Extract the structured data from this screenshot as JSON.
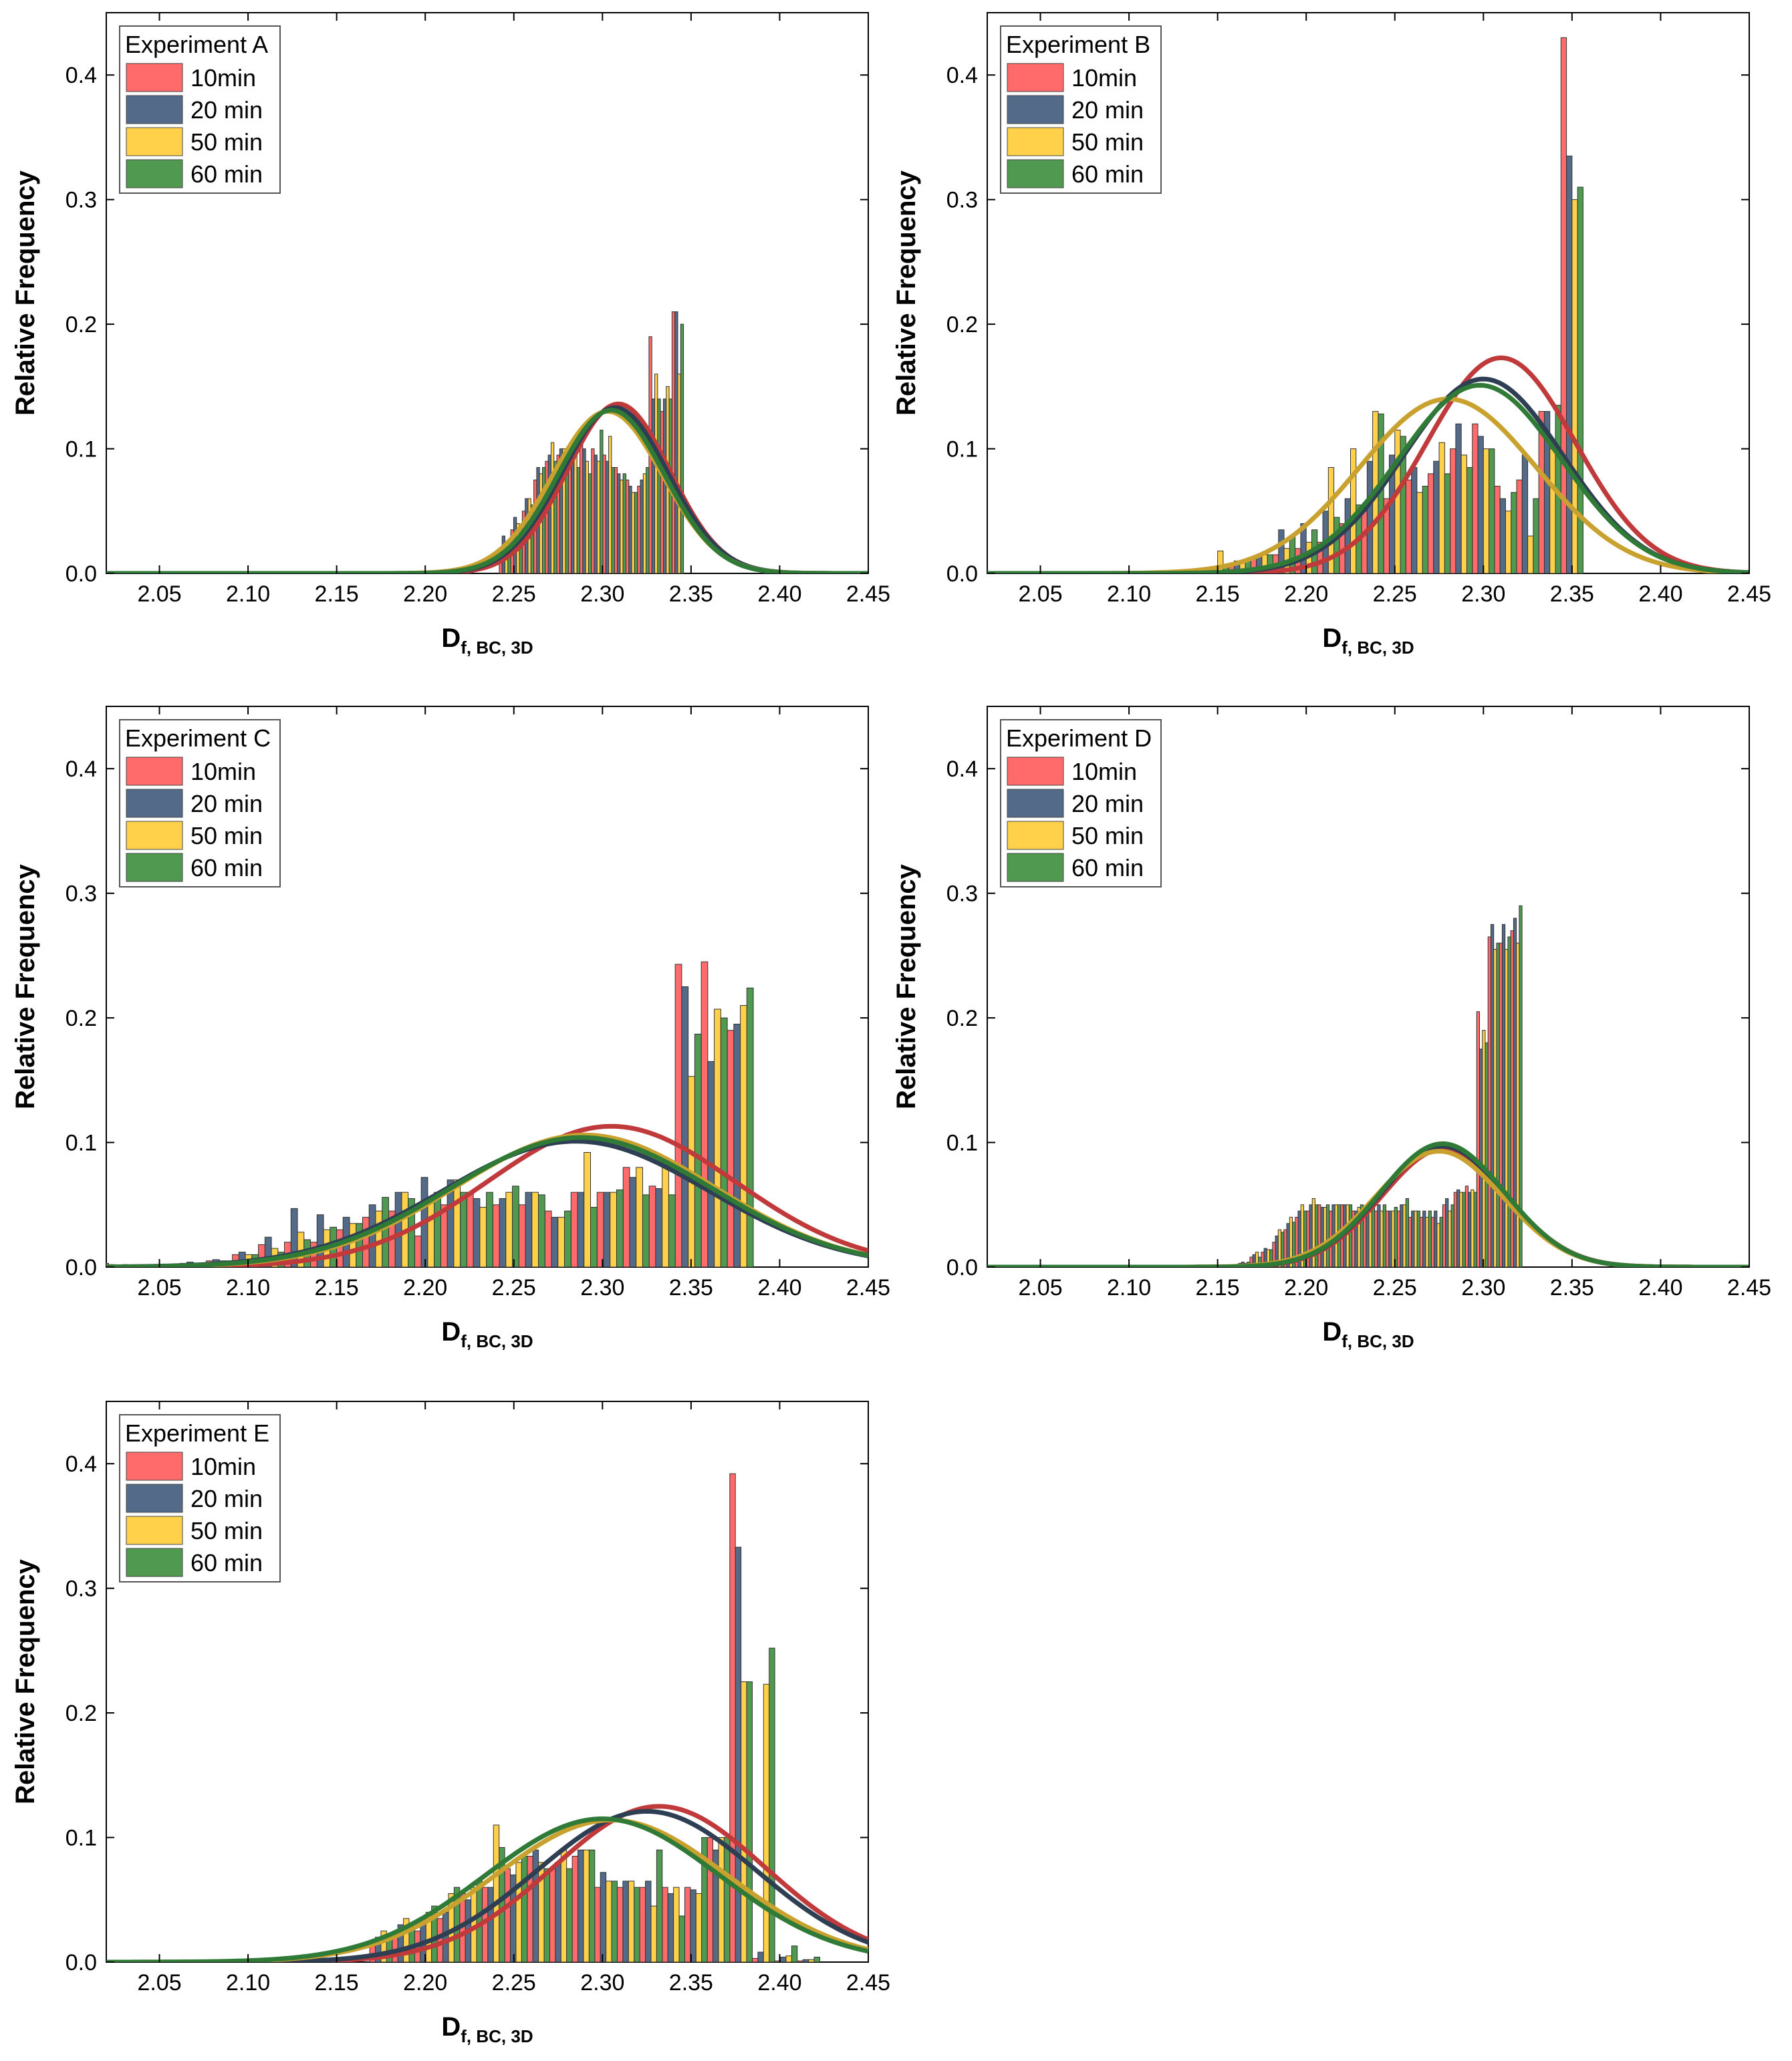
{
  "figure": {
    "x_axis_label_main": "D",
    "x_axis_label_sub": "f, BC, 3D",
    "y_axis_label": "Relative Frequency"
  },
  "series_styles": [
    {
      "name": "10min",
      "bar_color": "#ff6b6b",
      "line_color": "#c0393b"
    },
    {
      "name": "20 min",
      "bar_color": "#536b88",
      "line_color": "#2e3f54"
    },
    {
      "name": "50 min",
      "bar_color": "#ffd04a",
      "line_color": "#c9a12e"
    },
    {
      "name": "60 min",
      "bar_color": "#4f9a50",
      "line_color": "#2f7a36"
    }
  ],
  "chart_data": [
    {
      "type": "bar",
      "title": "Experiment A",
      "legend": [
        "10min",
        "20 min",
        "50 min",
        "60 min"
      ],
      "legend_position": "top-left",
      "xlabel": "D f, BC, 3D",
      "ylabel": "Relative Frequency",
      "xlim": [
        2.02,
        2.45
      ],
      "ylim": [
        0,
        0.45
      ],
      "xticks": [
        "2.05",
        "2.10",
        "2.15",
        "2.20",
        "2.25",
        "2.30",
        "2.35",
        "2.40",
        "2.45"
      ],
      "yticks": [
        "0.0",
        "0.1",
        "0.2",
        "0.3",
        "0.4"
      ],
      "bin_width": 0.0065,
      "categories": [
        2.245,
        2.2515,
        2.258,
        2.2645,
        2.271,
        2.2775,
        2.284,
        2.2905,
        2.297,
        2.3035,
        2.31,
        2.3165,
        2.323,
        2.3295,
        2.336,
        2.3425
      ],
      "series": [
        {
          "name": "10min",
          "values": [
            0.02,
            0.035,
            0.05,
            0.075,
            0.09,
            0.095,
            0.1,
            0.105,
            0.1,
            0.095,
            0.085,
            0.075,
            0.07,
            0.19,
            0.13,
            0.21
          ]
        },
        {
          "name": "20 min",
          "values": [
            0.03,
            0.045,
            0.06,
            0.085,
            0.095,
            0.1,
            0.095,
            0.1,
            0.095,
            0.09,
            0.08,
            0.07,
            0.075,
            0.14,
            0.14,
            0.21
          ]
        },
        {
          "name": "50 min",
          "values": [
            0.025,
            0.04,
            0.06,
            0.08,
            0.105,
            0.1,
            0.105,
            0.09,
            0.09,
            0.11,
            0.075,
            0.065,
            0.08,
            0.16,
            0.15,
            0.16
          ]
        },
        {
          "name": "60 min",
          "values": [
            0.02,
            0.035,
            0.055,
            0.085,
            0.09,
            0.1,
            0.085,
            0.08,
            0.115,
            0.085,
            0.08,
            0.065,
            0.085,
            0.14,
            0.14,
            0.2
          ]
        }
      ],
      "fit_curves": [
        {
          "name": "10min",
          "mean": 2.309,
          "sd": 0.029,
          "peak": 0.136
        },
        {
          "name": "20 min",
          "mean": 2.307,
          "sd": 0.03,
          "peak": 0.133
        },
        {
          "name": "50 min",
          "mean": 2.303,
          "sd": 0.031,
          "peak": 0.13
        },
        {
          "name": "60 min",
          "mean": 2.305,
          "sd": 0.03,
          "peak": 0.131
        }
      ]
    },
    {
      "type": "bar",
      "title": "Experiment B",
      "legend": [
        "10min",
        "20 min",
        "50 min",
        "60 min"
      ],
      "legend_position": "top-left",
      "xlabel": "D f, BC, 3D",
      "ylabel": "Relative Frequency",
      "xlim": [
        2.02,
        2.45
      ],
      "ylim": [
        0,
        0.45
      ],
      "xticks": [
        "2.05",
        "2.10",
        "2.15",
        "2.20",
        "2.25",
        "2.30",
        "2.35",
        "2.40",
        "2.45"
      ],
      "yticks": [
        "0.0",
        "0.1",
        "0.2",
        "0.3",
        "0.4"
      ],
      "bin_width": 0.0125,
      "categories": [
        2.15,
        2.1625,
        2.175,
        2.1875,
        2.2,
        2.2125,
        2.225,
        2.2375,
        2.25,
        2.2625,
        2.275,
        2.2875,
        2.3,
        2.3125,
        2.325,
        2.3375,
        2.35
      ],
      "series": [
        {
          "name": "10min",
          "values": [
            0.005,
            0.008,
            0.012,
            0.015,
            0.02,
            0.025,
            0.04,
            0.05,
            0.06,
            0.075,
            0.08,
            0.1,
            0.12,
            0.07,
            0.075,
            0.13,
            0.43
          ]
        },
        {
          "name": "20 min",
          "values": [
            0.005,
            0.01,
            0.015,
            0.035,
            0.04,
            0.05,
            0.06,
            0.09,
            0.095,
            0.085,
            0.09,
            0.12,
            0.11,
            0.06,
            0.095,
            0.13,
            0.335
          ]
        },
        {
          "name": "50 min",
          "values": [
            0.018,
            0.01,
            0.015,
            0.02,
            0.025,
            0.085,
            0.1,
            0.13,
            0.115,
            0.065,
            0.105,
            0.095,
            0.1,
            0.05,
            0.03,
            0.1,
            0.3
          ]
        },
        {
          "name": "60 min",
          "values": [
            0.005,
            0.01,
            0.015,
            0.03,
            0.035,
            0.045,
            0.055,
            0.128,
            0.11,
            0.07,
            0.08,
            0.085,
            0.1,
            0.065,
            0.06,
            0.135,
            0.31
          ]
        }
      ],
      "fit_curves": [
        {
          "name": "10min",
          "mean": 2.31,
          "sd": 0.042,
          "peak": 0.173
        },
        {
          "name": "20 min",
          "mean": 2.3,
          "sd": 0.045,
          "peak": 0.156
        },
        {
          "name": "50 min",
          "mean": 2.28,
          "sd": 0.05,
          "peak": 0.14
        },
        {
          "name": "60 min",
          "mean": 2.298,
          "sd": 0.046,
          "peak": 0.151
        }
      ]
    },
    {
      "type": "bar",
      "title": "Experiment C",
      "legend": [
        "10min",
        "20 min",
        "50 min",
        "60 min"
      ],
      "legend_position": "top-left",
      "xlabel": "D f, BC, 3D",
      "ylabel": "Relative Frequency",
      "xlim": [
        2.02,
        2.45
      ],
      "ylim": [
        0,
        0.45
      ],
      "xticks": [
        "2.05",
        "2.10",
        "2.15",
        "2.20",
        "2.25",
        "2.30",
        "2.35",
        "2.40",
        "2.45"
      ],
      "yticks": [
        "0.0",
        "0.1",
        "0.2",
        "0.3",
        "0.4"
      ],
      "bin_width": 0.0147,
      "categories": [
        2.025,
        2.0397,
        2.0544,
        2.0691,
        2.0838,
        2.0985,
        2.1132,
        2.1279,
        2.1426,
        2.1573,
        2.172,
        2.1867,
        2.2014,
        2.2161,
        2.2308,
        2.2455,
        2.2602,
        2.2749,
        2.2896,
        2.3043,
        2.319,
        2.3337,
        2.3484,
        2.3631,
        2.3778
      ],
      "series": [
        {
          "name": "10min",
          "values": [
            0.003,
            0.001,
            0.002,
            0.003,
            0.005,
            0.01,
            0.018,
            0.02,
            0.02,
            0.03,
            0.04,
            0.045,
            0.025,
            0.05,
            0.06,
            0.05,
            0.05,
            0.045,
            0.06,
            0.06,
            0.08,
            0.065,
            0.243,
            0.245,
            0.19
          ]
        },
        {
          "name": "20 min",
          "values": [
            0.002,
            0.001,
            0.002,
            0.004,
            0.006,
            0.012,
            0.024,
            0.047,
            0.042,
            0.04,
            0.05,
            0.06,
            0.072,
            0.07,
            0.055,
            0.055,
            0.06,
            0.04,
            0.06,
            0.06,
            0.072,
            0.063,
            0.225,
            0.165,
            0.195
          ]
        },
        {
          "name": "50 min",
          "values": [
            0.001,
            0.001,
            0.002,
            0.003,
            0.005,
            0.01,
            0.015,
            0.028,
            0.03,
            0.035,
            0.045,
            0.06,
            0.055,
            0.07,
            0.048,
            0.06,
            0.06,
            0.04,
            0.092,
            0.06,
            0.08,
            0.085,
            0.153,
            0.207,
            0.21
          ]
        },
        {
          "name": "60 min",
          "values": [
            0.002,
            0.001,
            0.002,
            0.003,
            0.005,
            0.01,
            0.012,
            0.022,
            0.032,
            0.035,
            0.056,
            0.055,
            0.06,
            0.06,
            0.06,
            0.065,
            0.058,
            0.045,
            0.048,
            0.062,
            0.058,
            0.058,
            0.187,
            0.2,
            0.224
          ]
        }
      ],
      "fit_curves": [
        {
          "name": "10min",
          "mean": 2.305,
          "sd": 0.07,
          "peak": 0.113
        },
        {
          "name": "20 min",
          "mean": 2.285,
          "sd": 0.075,
          "peak": 0.101
        },
        {
          "name": "50 min",
          "mean": 2.29,
          "sd": 0.073,
          "peak": 0.106
        },
        {
          "name": "60 min",
          "mean": 2.288,
          "sd": 0.074,
          "peak": 0.104
        }
      ]
    },
    {
      "type": "bar",
      "title": "Experiment D",
      "legend": [
        "10min",
        "20 min",
        "50 min",
        "60 min"
      ],
      "legend_position": "top-left",
      "xlabel": "D f, BC, 3D",
      "ylabel": "Relative Frequency",
      "xlim": [
        2.02,
        2.45
      ],
      "ylim": [
        0,
        0.45
      ],
      "xticks": [
        "2.05",
        "2.10",
        "2.15",
        "2.20",
        "2.25",
        "2.30",
        "2.35",
        "2.40",
        "2.45"
      ],
      "yticks": [
        "0.0",
        "0.1",
        "0.2",
        "0.3",
        "0.4"
      ],
      "bin_width": 0.0064,
      "categories": [
        2.165,
        2.1714,
        2.1778,
        2.1842,
        2.1906,
        2.197,
        2.2034,
        2.2098,
        2.2162,
        2.2226,
        2.229,
        2.2354,
        2.2418,
        2.2482,
        2.2546,
        2.261,
        2.2674,
        2.2738,
        2.2802,
        2.2866,
        2.293,
        2.2994,
        2.3058,
        2.3122,
        2.3186
      ],
      "series": [
        {
          "name": "10min",
          "values": [
            0.003,
            0.008,
            0.012,
            0.02,
            0.03,
            0.04,
            0.045,
            0.05,
            0.045,
            0.05,
            0.045,
            0.04,
            0.045,
            0.045,
            0.045,
            0.04,
            0.04,
            0.04,
            0.05,
            0.06,
            0.065,
            0.205,
            0.265,
            0.26,
            0.27
          ]
        },
        {
          "name": "20 min",
          "values": [
            0.004,
            0.01,
            0.015,
            0.025,
            0.035,
            0.045,
            0.05,
            0.048,
            0.05,
            0.05,
            0.045,
            0.045,
            0.05,
            0.045,
            0.05,
            0.045,
            0.045,
            0.045,
            0.055,
            0.062,
            0.06,
            0.175,
            0.275,
            0.275,
            0.28
          ]
        },
        {
          "name": "50 min",
          "values": [
            0.003,
            0.012,
            0.014,
            0.03,
            0.04,
            0.05,
            0.055,
            0.048,
            0.05,
            0.05,
            0.048,
            0.05,
            0.045,
            0.045,
            0.05,
            0.045,
            0.04,
            0.035,
            0.045,
            0.06,
            0.062,
            0.19,
            0.255,
            0.255,
            0.26
          ]
        },
        {
          "name": "60 min",
          "values": [
            0.004,
            0.008,
            0.014,
            0.028,
            0.036,
            0.045,
            0.05,
            0.05,
            0.05,
            0.05,
            0.05,
            0.048,
            0.05,
            0.048,
            0.055,
            0.045,
            0.045,
            0.04,
            0.05,
            0.06,
            0.06,
            0.18,
            0.26,
            0.265,
            0.29
          ]
        }
      ],
      "fit_curves": [
        {
          "name": "10min",
          "mean": 2.278,
          "sd": 0.035,
          "peak": 0.095
        },
        {
          "name": "20 min",
          "mean": 2.277,
          "sd": 0.035,
          "peak": 0.097
        },
        {
          "name": "50 min",
          "mean": 2.275,
          "sd": 0.036,
          "peak": 0.093
        },
        {
          "name": "60 min",
          "mean": 2.277,
          "sd": 0.035,
          "peak": 0.099
        }
      ]
    },
    {
      "type": "bar",
      "title": "Experiment E",
      "legend": [
        "10min",
        "20 min",
        "50 min",
        "60 min"
      ],
      "legend_position": "top-left",
      "xlabel": "D f, BC, 3D",
      "ylabel": "Relative Frequency",
      "xlim": [
        2.02,
        2.45
      ],
      "ylim": [
        0,
        0.45
      ],
      "xticks": [
        "2.05",
        "2.10",
        "2.15",
        "2.20",
        "2.25",
        "2.30",
        "2.35",
        "2.40",
        "2.45"
      ],
      "yticks": [
        "0.0",
        "0.1",
        "0.2",
        "0.3",
        "0.4"
      ],
      "bin_width": 0.0127,
      "categories": [
        2.175,
        2.1877,
        2.2004,
        2.2131,
        2.2258,
        2.2385,
        2.2512,
        2.2639,
        2.2766,
        2.2893,
        2.302,
        2.3147,
        2.3274,
        2.3401,
        2.3528,
        2.3655,
        2.3782,
        2.3909,
        2.4036,
        2.4163
      ],
      "series": [
        {
          "name": "10min",
          "values": [
            0.015,
            0.02,
            0.025,
            0.035,
            0.055,
            0.06,
            0.075,
            0.085,
            0.075,
            0.085,
            0.06,
            0.06,
            0.06,
            0.06,
            0.06,
            0.1,
            0.392,
            0.003,
            0.001,
            0.001
          ]
        },
        {
          "name": "20 min",
          "values": [
            0.02,
            0.03,
            0.035,
            0.04,
            0.05,
            0.06,
            0.07,
            0.09,
            0.08,
            0.09,
            0.072,
            0.065,
            0.065,
            0.055,
            0.058,
            0.09,
            0.333,
            0.008,
            0.004,
            0.002
          ]
        },
        {
          "name": "50 min",
          "values": [
            0.025,
            0.035,
            0.04,
            0.055,
            0.06,
            0.11,
            0.08,
            0.08,
            0.09,
            0.09,
            0.065,
            0.065,
            0.045,
            0.06,
            0.055,
            0.1,
            0.225,
            0.223,
            0.005,
            0.002
          ]
        },
        {
          "name": "60 min",
          "values": [
            0.02,
            0.03,
            0.045,
            0.06,
            0.065,
            0.092,
            0.085,
            0.075,
            0.075,
            0.09,
            0.065,
            0.06,
            0.09,
            0.037,
            0.1,
            0.1,
            0.225,
            0.252,
            0.013,
            0.004
          ]
        }
      ],
      "fit_curves": [
        {
          "name": "10min",
          "mean": 2.332,
          "sd": 0.06,
          "peak": 0.125
        },
        {
          "name": "20 min",
          "mean": 2.325,
          "sd": 0.062,
          "peak": 0.121
        },
        {
          "name": "50 min",
          "mean": 2.305,
          "sd": 0.066,
          "peak": 0.114
        },
        {
          "name": "60 min",
          "mean": 2.3,
          "sd": 0.066,
          "peak": 0.115
        }
      ]
    }
  ]
}
